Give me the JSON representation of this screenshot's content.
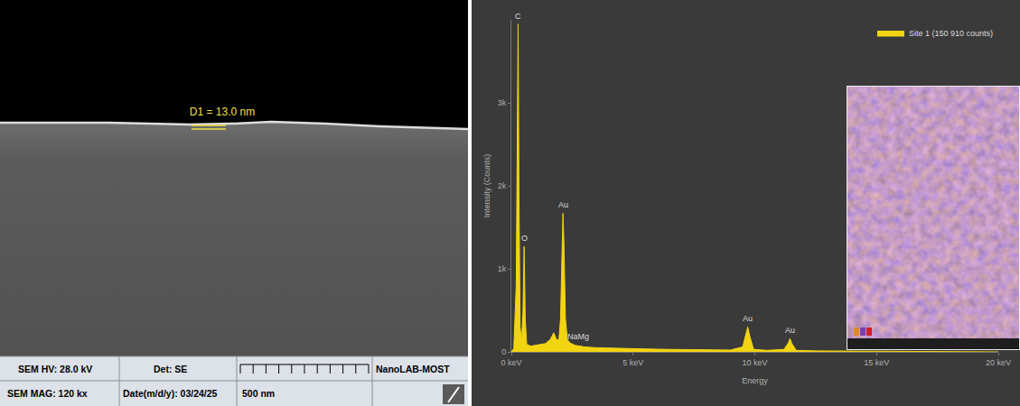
{
  "sem_image": {
    "measurement": "D1 = 13.0 nm",
    "info_bar": {
      "hv": "SEM HV: 28.0 kV",
      "det": "Det: SE",
      "lab": "NanoLAB-MOST",
      "mag": "SEM MAG: 120 kx",
      "date": "Date(m/d/y): 03/24/25",
      "scale": "500 nm"
    }
  },
  "chart_data": {
    "type": "area",
    "x_label": "Energy",
    "y_label": "Intensity (Counts)",
    "x": [
      0,
      0.1,
      0.2,
      0.25,
      0.277,
      0.31,
      0.36,
      0.42,
      0.48,
      0.525,
      0.57,
      0.63,
      0.8,
      1.0,
      1.2,
      1.4,
      1.6,
      1.74,
      1.85,
      1.95,
      2.02,
      2.08,
      2.12,
      2.16,
      2.22,
      2.3,
      2.4,
      2.6,
      2.8,
      3.0,
      3.5,
      4,
      5,
      6,
      7,
      8,
      9,
      9.5,
      9.62,
      9.71,
      9.8,
      9.95,
      10.5,
      11.2,
      11.38,
      11.44,
      11.52,
      11.7,
      12.5,
      14,
      16,
      18,
      20
    ],
    "series": [
      {
        "name": "Site 1 (150 910 counts)",
        "color": "#f2d411",
        "values": [
          0,
          40,
          800,
          2500,
          3950,
          2000,
          300,
          120,
          500,
          1270,
          400,
          90,
          70,
          80,
          90,
          100,
          150,
          230,
          150,
          140,
          400,
          1200,
          1670,
          1300,
          400,
          150,
          110,
          80,
          70,
          60,
          50,
          45,
          38,
          32,
          28,
          25,
          22,
          60,
          200,
          300,
          180,
          30,
          18,
          30,
          110,
          160,
          100,
          18,
          12,
          8,
          5,
          3,
          0
        ]
      }
    ],
    "xlim": [
      0,
      20
    ],
    "xticks": [
      {
        "value": 0,
        "label": "0 keV"
      },
      {
        "value": 5,
        "label": "5 keV"
      },
      {
        "value": 10,
        "label": "10 keV"
      },
      {
        "value": 15,
        "label": "15 keV"
      },
      {
        "value": 20,
        "label": "20 keV"
      }
    ],
    "ylim": [
      0,
      4000
    ],
    "yticks": [
      0,
      {
        "value": 1000,
        "label": "1k"
      },
      {
        "value": 2000,
        "label": "2k"
      },
      {
        "value": 3000,
        "label": "3k"
      }
    ],
    "annotations": [
      {
        "text": "C",
        "x": 0.277,
        "y": 3950
      },
      {
        "text": "O",
        "x": 0.525,
        "y": 1270
      },
      {
        "text": "Au",
        "x": 2.12,
        "y": 1670
      },
      {
        "text": "NaMg",
        "x": 2.75,
        "y": 90
      },
      {
        "text": "Au",
        "x": 9.71,
        "y": 300
      },
      {
        "text": "Au",
        "x": 11.44,
        "y": 160
      }
    ],
    "grid": false,
    "legend": "top-right"
  }
}
